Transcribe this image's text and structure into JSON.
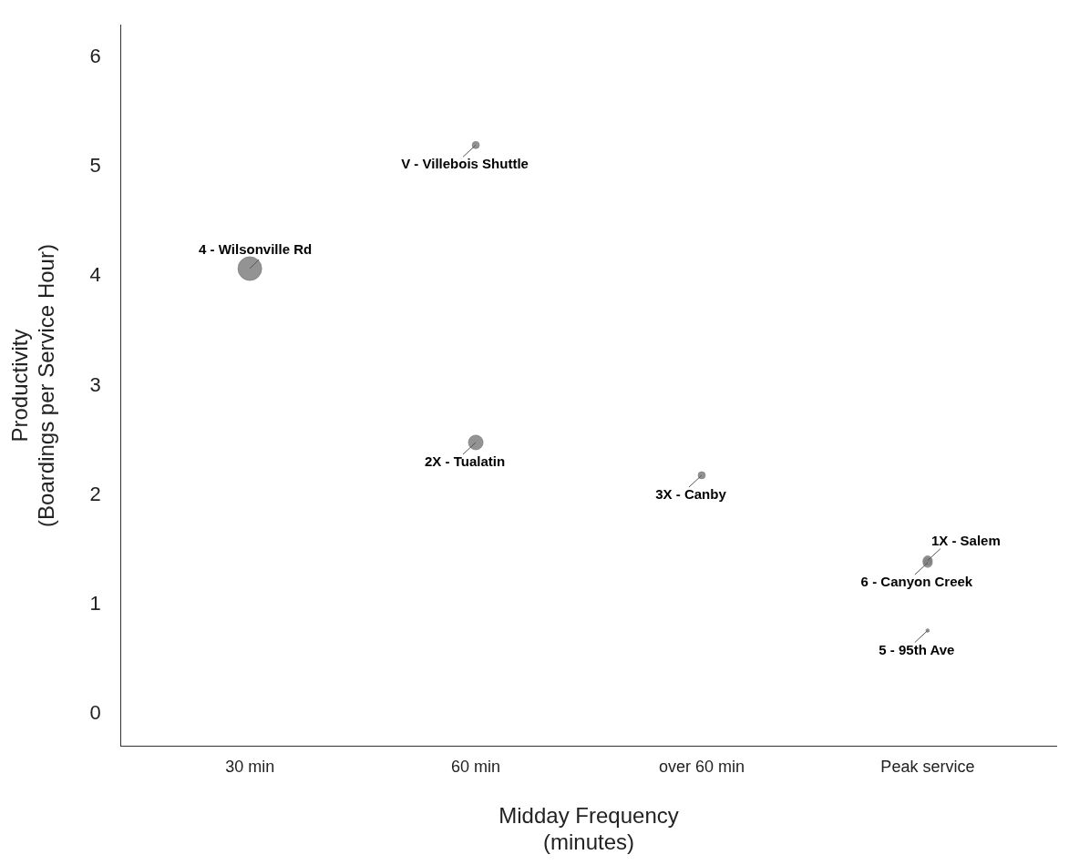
{
  "chart_data": {
    "type": "bubble",
    "xlabel": "Midday Frequency\n(minutes)",
    "ylabel": "Productivity\n(Boardings per Service Hour)",
    "categories": [
      "30 min",
      "60 min",
      "over 60 min",
      "Peak service"
    ],
    "series": [
      {
        "color": "#808080",
        "x": [
          "30 min",
          "60 min",
          "60 min",
          "over 60 min",
          "Peak service",
          "Peak service",
          "Peak service"
        ],
        "values": [
          4.07,
          5.2,
          2.48,
          2.18,
          1.4,
          1.38,
          0.76
        ],
        "sizes": [
          1,
          0.09,
          0.38,
          0.09,
          0.15,
          0.15,
          0.02
        ]
      }
    ],
    "ylim": [
      -0.3,
      6.3
    ],
    "yticks": [
      0,
      1,
      2,
      3,
      4,
      5,
      6
    ],
    "grid": false,
    "legend": false,
    "annotations": [
      {
        "text": "4 - Wilsonville Rd",
        "x": "30 min",
        "y": 4.07
      },
      {
        "text": "V - Villebois Shuttle",
        "x": "60 min",
        "y": 5.2
      },
      {
        "text": "2X - Tualatin",
        "x": "60 min",
        "y": 2.48
      },
      {
        "text": "3X - Canby",
        "x": "over 60 min",
        "y": 2.18
      },
      {
        "text": "1X - Salem",
        "x": "Peak service",
        "y": 1.4
      },
      {
        "text": "6 - Canyon Creek",
        "x": "Peak service",
        "y": 1.38
      },
      {
        "text": "5 - 95th Ave",
        "x": "Peak service",
        "y": 0.76
      }
    ]
  }
}
